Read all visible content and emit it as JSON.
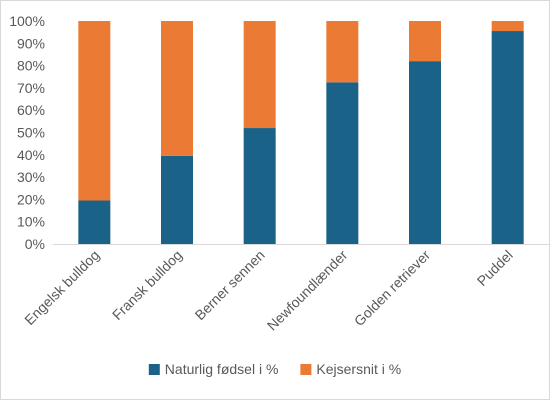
{
  "chart_data": {
    "type": "bar",
    "stacked": true,
    "stack_mode": "percent",
    "categories": [
      "Engelsk bulldog",
      "Fransk bulldog",
      "Berner sennen",
      "Newfoundlænder",
      "Golden retriever",
      "Puddel"
    ],
    "series": [
      {
        "name": "Naturlig fødsel i %",
        "color": "#1a6287",
        "values": [
          19.5,
          39.5,
          52,
          72.5,
          82,
          95.5
        ]
      },
      {
        "name": "Kejsersnit i %",
        "color": "#ea7a34",
        "values": [
          80.5,
          60.5,
          48,
          27.5,
          18,
          4.5
        ]
      }
    ],
    "ylim": [
      0,
      100
    ],
    "y_ticks": [
      "0%",
      "10%",
      "20%",
      "30%",
      "40%",
      "50%",
      "60%",
      "70%",
      "80%",
      "90%",
      "100%"
    ],
    "grid": false,
    "legend_position": "bottom",
    "axis_color": "#d9d9d9"
  }
}
